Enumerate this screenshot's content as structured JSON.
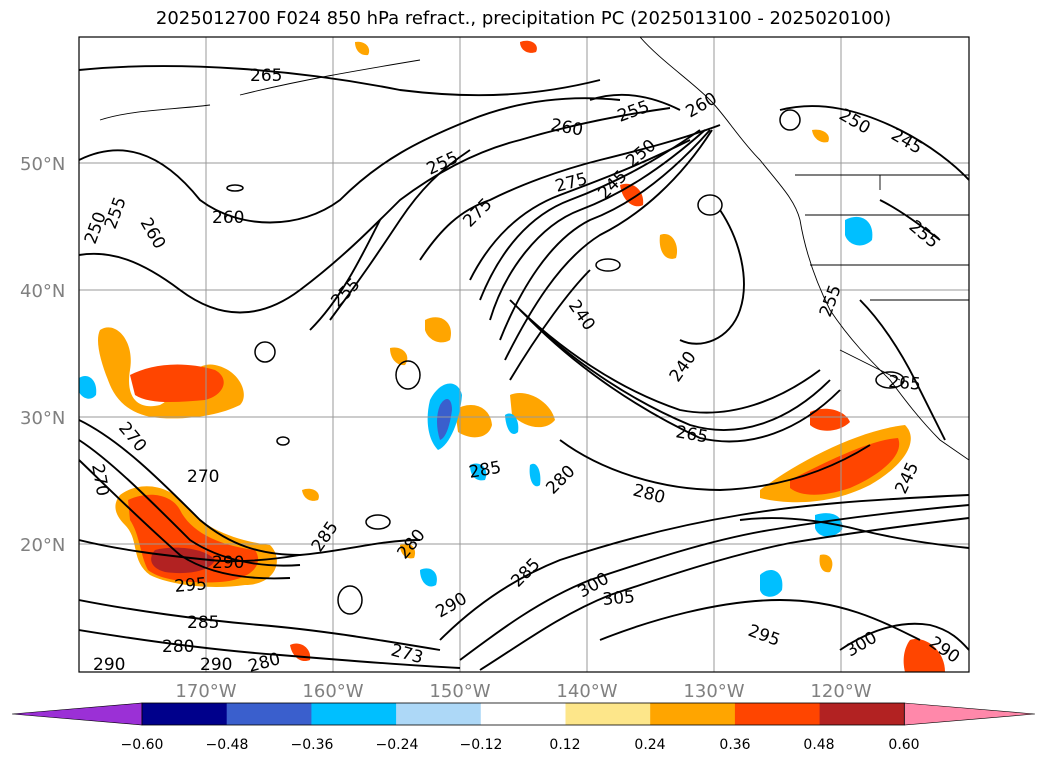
{
  "title": "2025012700 F024 850 hPa refract., precipitation PC (2025013100 - 2025020100)",
  "map": {
    "lat_labels": [
      "50°N",
      "40°N",
      "30°N",
      "20°N"
    ],
    "lon_labels": [
      "170°W",
      "160°W",
      "150°W",
      "140°W",
      "130°W",
      "120°W"
    ],
    "grid_label_color": "#808080",
    "contour_labels": [
      "265",
      "260",
      "255",
      "250",
      "245",
      "255",
      "250",
      "255",
      "260",
      "260",
      "255",
      "275",
      "275",
      "250",
      "245",
      "255",
      "240",
      "240",
      "265",
      "265",
      "255",
      "270",
      "270",
      "270",
      "290",
      "290",
      "295",
      "285",
      "285",
      "285",
      "280",
      "290",
      "280",
      "273",
      "290",
      "285",
      "280",
      "280",
      "300",
      "305",
      "295",
      "300",
      "290",
      "245",
      "280",
      "260"
    ]
  },
  "colorbar": {
    "tick_labels": [
      "−0.60",
      "−0.48",
      "−0.36",
      "−0.24",
      "−0.12",
      "0.12",
      "0.24",
      "0.36",
      "0.48",
      "0.60"
    ],
    "colors": [
      "#9b30d6",
      "#00008b",
      "#3a5fcd",
      "#00bfff",
      "#add8f7",
      "#ffffff",
      "#fde68a",
      "#ffa500",
      "#ff4500",
      "#b22222",
      "#ff88aa"
    ]
  }
}
